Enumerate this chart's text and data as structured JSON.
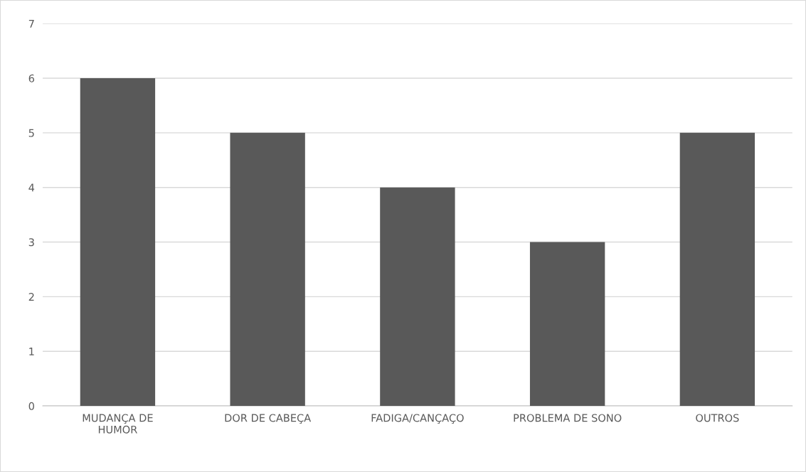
{
  "chart_data": {
    "type": "bar",
    "categories": [
      "MUDANÇA DE\nHUMOR",
      "DOR DE CABEÇA",
      "FADIGA/CANÇAÇO",
      "PROBLEMA DE SONO",
      "OUTROS"
    ],
    "values": [
      6,
      5,
      4,
      3,
      5
    ],
    "color": "#595959",
    "ylim": [
      0,
      7
    ],
    "yticks": [
      0,
      1,
      2,
      3,
      4,
      5,
      6,
      7
    ],
    "grid": "y",
    "legend": false
  }
}
